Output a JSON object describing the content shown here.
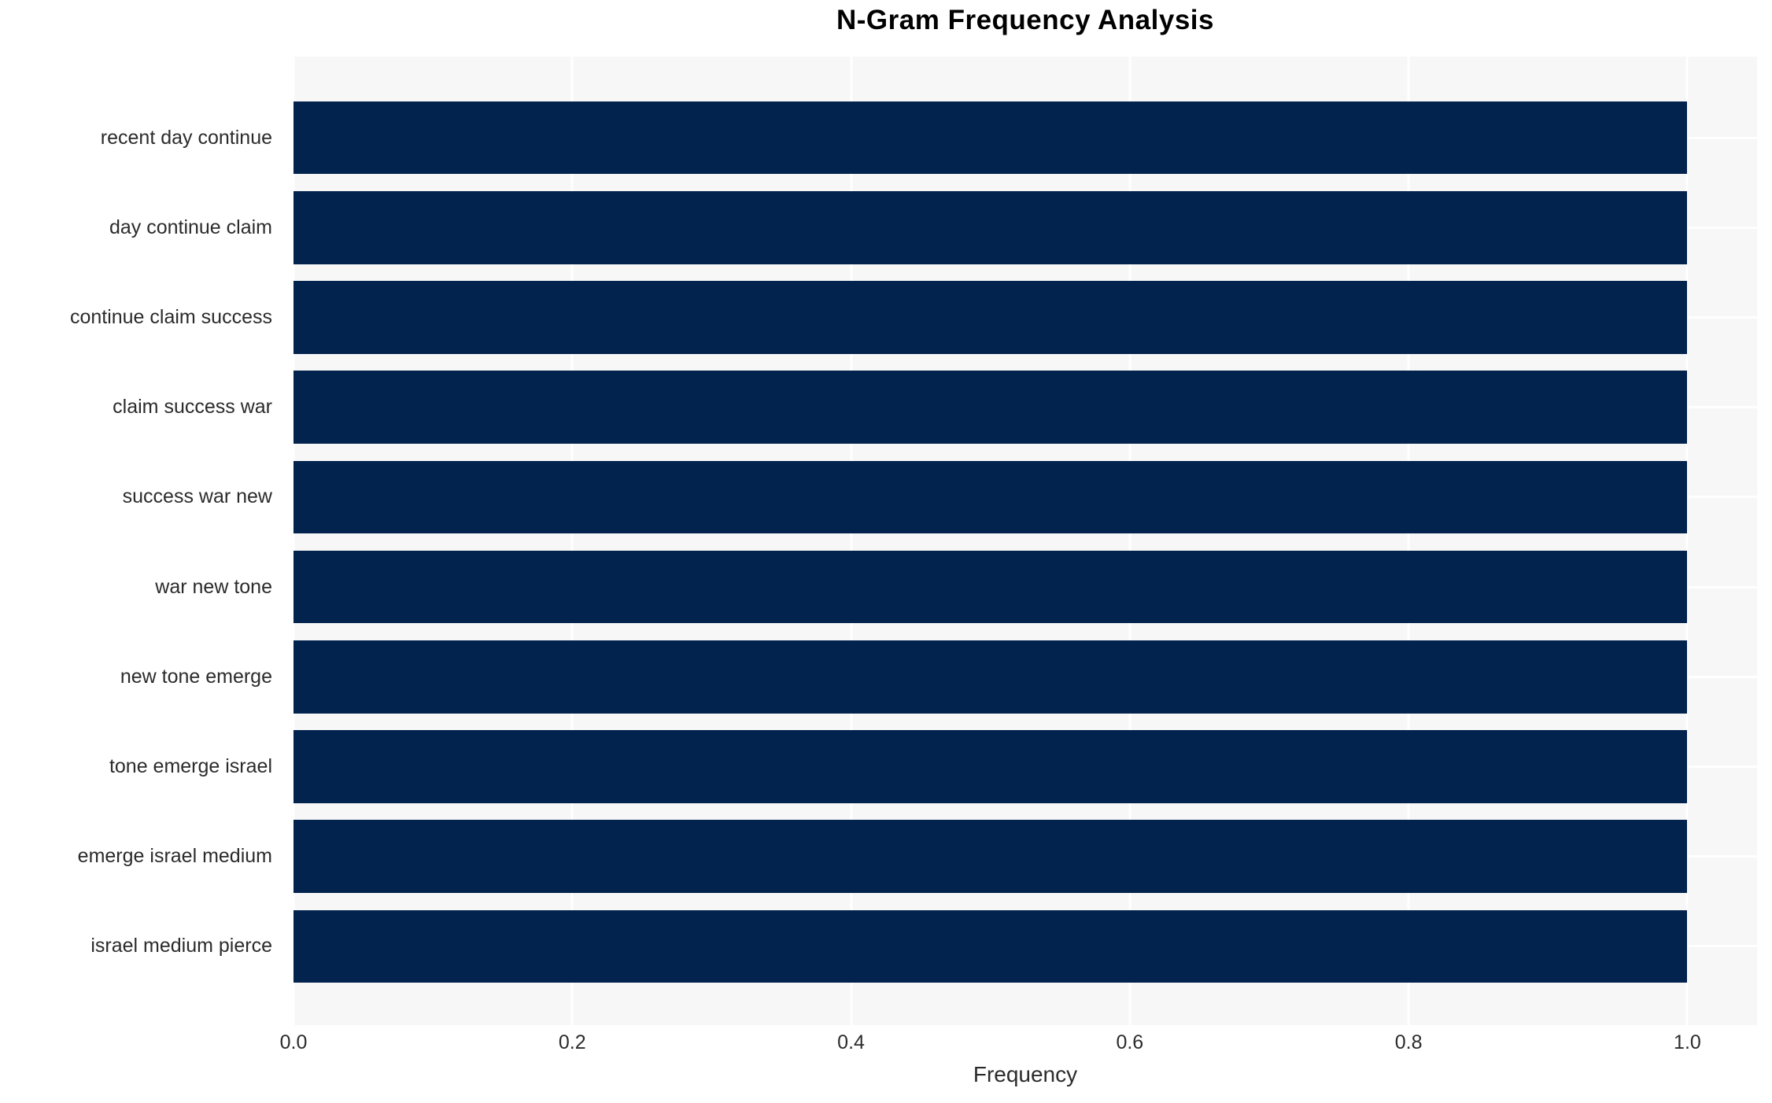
{
  "chart_data": {
    "type": "bar",
    "orientation": "horizontal",
    "title": "N-Gram Frequency Analysis",
    "xlabel": "Frequency",
    "ylabel": "",
    "categories": [
      "recent day continue",
      "day continue claim",
      "continue claim success",
      "claim success war",
      "success war new",
      "war new tone",
      "new tone emerge",
      "tone emerge israel",
      "emerge israel medium",
      "israel medium pierce"
    ],
    "values": [
      1.0,
      1.0,
      1.0,
      1.0,
      1.0,
      1.0,
      1.0,
      1.0,
      1.0,
      1.0
    ],
    "xticks": [
      0.0,
      0.2,
      0.4,
      0.6,
      0.8,
      1.0
    ],
    "xtick_labels": [
      "0.0",
      "0.2",
      "0.4",
      "0.6",
      "0.8",
      "1.0"
    ],
    "xlim": [
      0,
      1.05
    ],
    "grid": true,
    "legend": null,
    "colors": {
      "bar": "#02234d",
      "plot_background": "#f7f7f7",
      "gridline": "#ffffff",
      "tick_label": "#2b2b2b",
      "title": "#000000"
    }
  }
}
